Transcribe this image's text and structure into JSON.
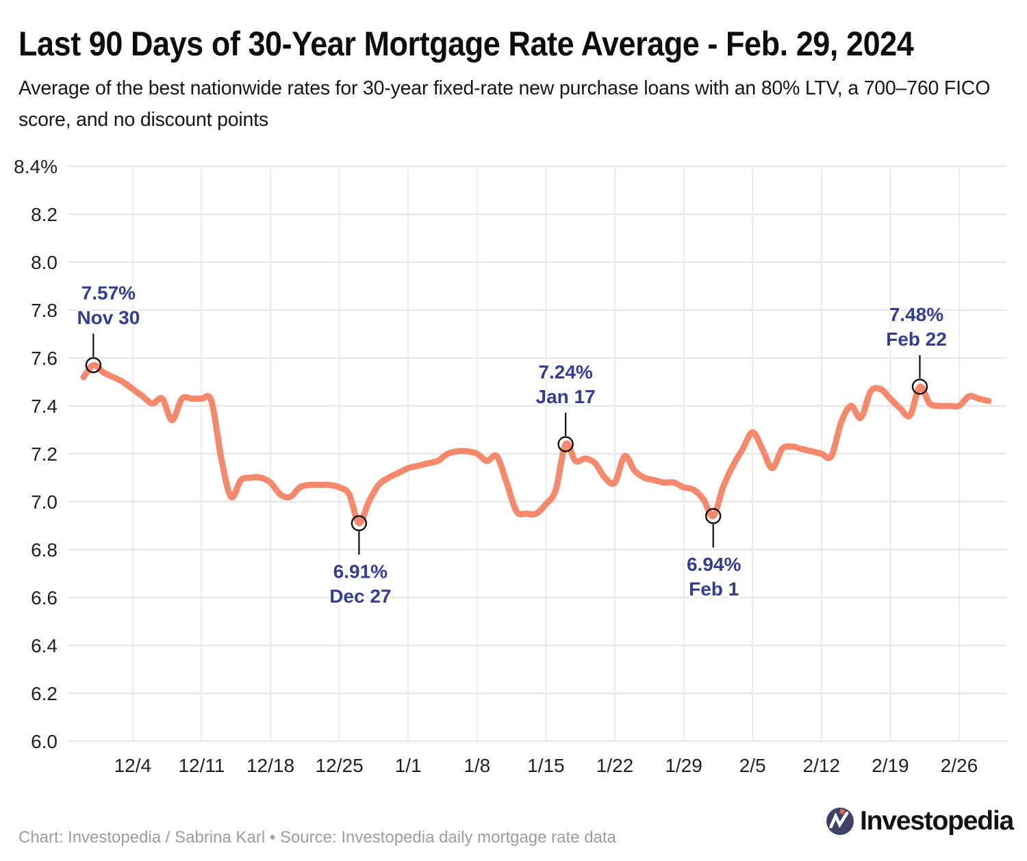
{
  "header": {
    "title": "Last 90 Days of 30-Year Mortgage Rate Average - Feb. 29, 2024",
    "subtitle": "Average of the best nationwide rates for 30-year fixed-rate new purchase loans with an 80% LTV, a 700–760 FICO score, and no discount points"
  },
  "footer": {
    "credit": "Chart: Investopedia / Sabrina Karl • Source: Investopedia daily mortgage rate data",
    "logo_text": "Investopedia"
  },
  "colors": {
    "line": "#f6886b",
    "annotation_text": "#333d94",
    "grid": "#e5e5e5",
    "axis_text": "#1f1f1f",
    "credit_text": "#9c9c9c",
    "logo_navy": "#3d4166",
    "logo_orange": "#ee6340"
  },
  "chart_data": {
    "type": "line",
    "title": "Last 90 Days of 30-Year Mortgage Rate Average - Feb. 29, 2024",
    "xlabel": "",
    "ylabel": "",
    "grid": true,
    "legend": false,
    "ylim": [
      6.0,
      8.4
    ],
    "line_color": "#f6886b",
    "y_ticks": [
      {
        "value": 8.4,
        "label": "8.4%"
      },
      {
        "value": 8.2,
        "label": "8.2"
      },
      {
        "value": 8.0,
        "label": "8.0"
      },
      {
        "value": 7.8,
        "label": "7.8"
      },
      {
        "value": 7.6,
        "label": "7.6"
      },
      {
        "value": 7.4,
        "label": "7.4"
      },
      {
        "value": 7.2,
        "label": "7.2"
      },
      {
        "value": 7.0,
        "label": "7.0"
      },
      {
        "value": 6.8,
        "label": "6.8"
      },
      {
        "value": 6.6,
        "label": "6.6"
      },
      {
        "value": 6.4,
        "label": "6.4"
      },
      {
        "value": 6.2,
        "label": "6.2"
      },
      {
        "value": 6.0,
        "label": "6.0"
      }
    ],
    "x_ticks": [
      "12/4",
      "12/11",
      "12/18",
      "12/25",
      "1/1",
      "1/8",
      "1/15",
      "1/22",
      "1/29",
      "2/5",
      "2/12",
      "2/19",
      "2/26"
    ],
    "x": [
      "11/29",
      "11/30",
      "12/1",
      "12/2",
      "12/3",
      "12/4",
      "12/5",
      "12/6",
      "12/7",
      "12/8",
      "12/9",
      "12/10",
      "12/11",
      "12/12",
      "12/13",
      "12/14",
      "12/15",
      "12/16",
      "12/17",
      "12/18",
      "12/19",
      "12/20",
      "12/21",
      "12/22",
      "12/23",
      "12/24",
      "12/25",
      "12/26",
      "12/27",
      "12/28",
      "12/29",
      "12/30",
      "12/31",
      "1/1",
      "1/2",
      "1/3",
      "1/4",
      "1/5",
      "1/6",
      "1/7",
      "1/8",
      "1/9",
      "1/10",
      "1/11",
      "1/12",
      "1/13",
      "1/14",
      "1/15",
      "1/16",
      "1/17",
      "1/18",
      "1/19",
      "1/20",
      "1/21",
      "1/22",
      "1/23",
      "1/24",
      "1/25",
      "1/26",
      "1/27",
      "1/28",
      "1/29",
      "1/30",
      "1/31",
      "2/1",
      "2/2",
      "2/3",
      "2/4",
      "2/5",
      "2/6",
      "2/7",
      "2/8",
      "2/9",
      "2/10",
      "2/11",
      "2/12",
      "2/13",
      "2/14",
      "2/15",
      "2/16",
      "2/17",
      "2/18",
      "2/19",
      "2/20",
      "2/21",
      "2/22",
      "2/23",
      "2/24",
      "2/25",
      "2/26",
      "2/27",
      "2/28",
      "2/29"
    ],
    "values": [
      7.52,
      7.57,
      7.54,
      7.52,
      7.5,
      7.47,
      7.44,
      7.41,
      7.43,
      7.34,
      7.43,
      7.43,
      7.43,
      7.42,
      7.18,
      7.02,
      7.09,
      7.1,
      7.1,
      7.08,
      7.03,
      7.02,
      7.06,
      7.07,
      7.07,
      7.07,
      7.06,
      7.03,
      6.91,
      7.0,
      7.07,
      7.1,
      7.12,
      7.14,
      7.15,
      7.16,
      7.17,
      7.2,
      7.21,
      7.21,
      7.2,
      7.17,
      7.19,
      7.08,
      6.96,
      6.95,
      6.95,
      6.99,
      7.05,
      7.24,
      7.17,
      7.18,
      7.16,
      7.1,
      7.08,
      7.19,
      7.13,
      7.1,
      7.09,
      7.08,
      7.08,
      7.06,
      7.05,
      7.01,
      6.94,
      7.06,
      7.15,
      7.22,
      7.29,
      7.22,
      7.14,
      7.22,
      7.23,
      7.22,
      7.21,
      7.2,
      7.19,
      7.33,
      7.4,
      7.35,
      7.46,
      7.47,
      7.43,
      7.39,
      7.36,
      7.48,
      7.41,
      7.4,
      7.4,
      7.4,
      7.44,
      7.43,
      7.42
    ],
    "annotations": [
      {
        "value_label": "7.57%",
        "date_label": "Nov 30",
        "date": "11/30",
        "value": 7.57,
        "position": "above",
        "dx": 22
      },
      {
        "value_label": "6.91%",
        "date_label": "Dec 27",
        "date": "12/27",
        "value": 6.91,
        "position": "below",
        "dx": 2
      },
      {
        "value_label": "7.24%",
        "date_label": "Jan 17",
        "date": "1/17",
        "value": 7.24,
        "position": "above",
        "dx": 0
      },
      {
        "value_label": "6.94%",
        "date_label": "Feb 1",
        "date": "2/1",
        "value": 6.94,
        "position": "below",
        "dx": 1
      },
      {
        "value_label": "7.48%",
        "date_label": "Feb 22",
        "date": "2/22",
        "value": 7.48,
        "position": "above",
        "dx": -5
      }
    ]
  }
}
